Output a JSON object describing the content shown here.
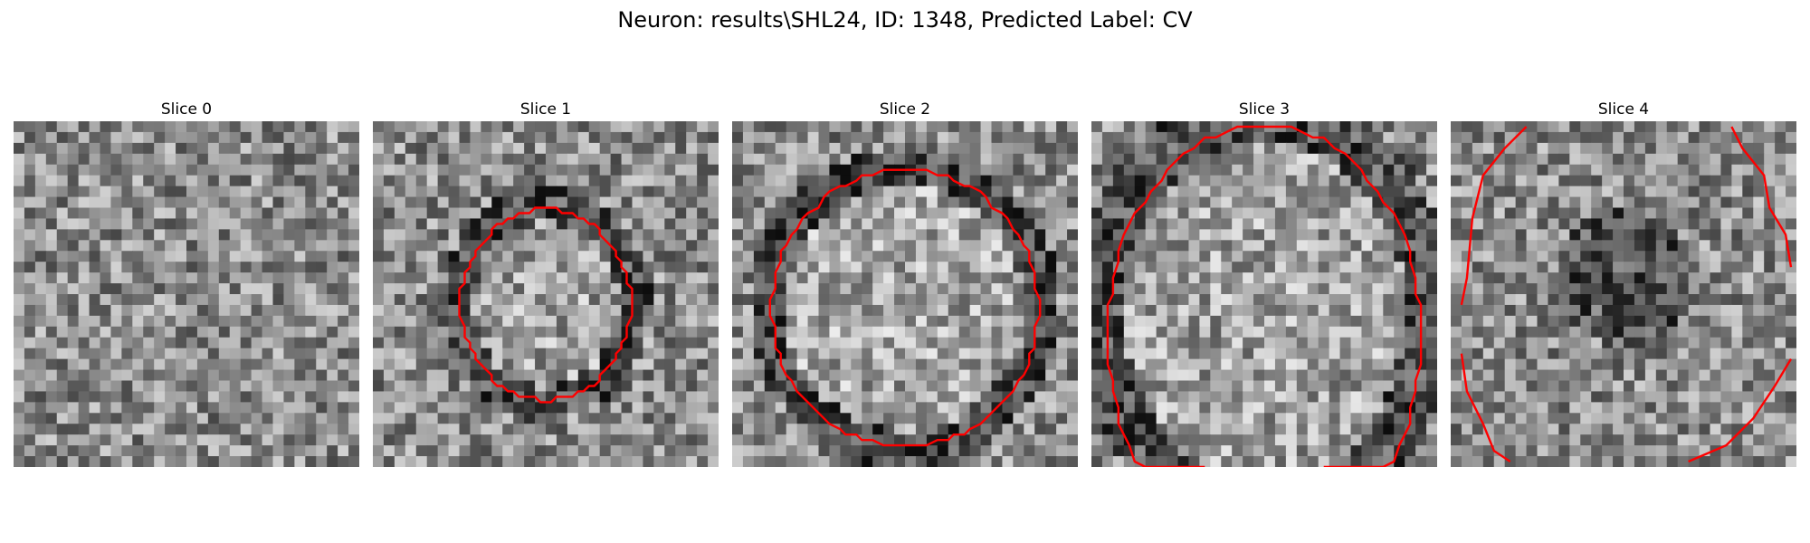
{
  "figure": {
    "title": "Neuron: results\\SHL24, ID: 1348, Predicted Label: CV"
  },
  "panels": [
    {
      "title": "Slice 0",
      "seed": 11,
      "contour": false
    },
    {
      "title": "Slice 1",
      "seed": 23,
      "contour": true
    },
    {
      "title": "Slice 2",
      "seed": 37,
      "contour": true
    },
    {
      "title": "Slice 3",
      "seed": 41,
      "contour": true
    },
    {
      "title": "Slice 4",
      "seed": 53,
      "contour": true
    }
  ],
  "colors": {
    "contour": "#ff0000",
    "colormap": "gray"
  }
}
